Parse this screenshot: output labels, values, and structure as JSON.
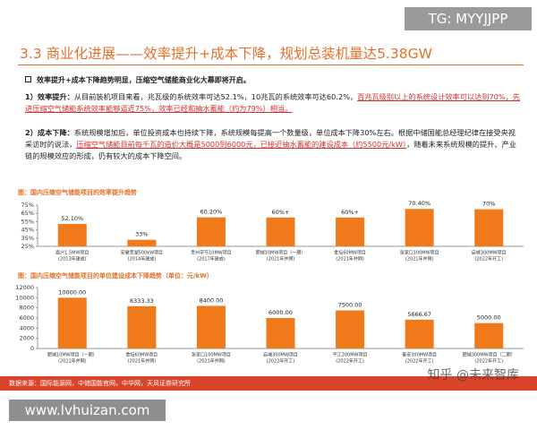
{
  "watermark_top": "TG: MYYJJPP",
  "header": {
    "title": "3.3 商业化进展——效率提升+成本下降，规划总装机量达5.38GW"
  },
  "summary": "效率提升+成本下降趋势明显，压缩空气储能商业化大幕即将开启。",
  "points": [
    {
      "label": "1）效率提升：",
      "segments": [
        {
          "text": "从目前装机项目来看，兆瓦级的系统效率可达52.1%，10兆瓦的系统效率可达60.2%，",
          "highlight": false
        },
        {
          "text": "百兆瓦级别以上的系统设计效率可以达到70%，先进压缩空气储能系统效率能够逼近75%，效率已经和抽水蓄能（约为79%）相当。",
          "highlight": true
        }
      ]
    },
    {
      "label": "2）成本下降：",
      "segments": [
        {
          "text": "系统规模增加后，单位投资成本也持续下降，系统规模每提高一个数量级，单位成本下降30%左右。根据中储国能总经理纪律在接受央视采访时的说法，",
          "highlight": false
        },
        {
          "text": "压缩空气储能目前每千瓦的造价大概是5000到6000元，已接近抽水蓄能的建设成本（约5500元/kW）",
          "highlight": true
        },
        {
          "text": "，随着未来系统规模的提升、产业链的规模效应的形成，仍有较大的成本下降空间。",
          "highlight": false
        }
      ]
    }
  ],
  "chart_data": [
    {
      "type": "bar",
      "title": "图：国内压缩空气储能项目的效率提升趋势",
      "categories": [
        "嘉兴1.5MW项目",
        "安徽芜湖500kW项目",
        "贵州毕节10MW项目",
        "肥城10MW项目（一期）",
        "金坛60MW项目",
        "张家口100MW项目",
        "启城300MW项目"
      ],
      "category_notes": [
        "(2013年建成)",
        "(2014年建成)",
        "(2017年建成)",
        "(2021年并网)",
        "(2021年并网)",
        "(2021年并网)",
        "(2022年开工)"
      ],
      "values": [
        52.1,
        33,
        60.2,
        60,
        60,
        70.4,
        70
      ],
      "value_labels": [
        "52.10%",
        "33%",
        "60.20%",
        "60%+",
        "60%+",
        "70.40%",
        "70%"
      ],
      "color": "#f07a1a",
      "ylim": [
        25,
        75
      ],
      "yticks": [
        {
          "value": 25,
          "label": "25%"
        },
        {
          "value": 35,
          "label": "35%"
        },
        {
          "value": 45,
          "label": "45%"
        },
        {
          "value": 55,
          "label": "55%"
        },
        {
          "value": 65,
          "label": "65%"
        },
        {
          "value": 75,
          "label": "75%"
        }
      ]
    },
    {
      "type": "bar",
      "title": "图：国内压缩空气储能项目的单位建设成本下降趋势（单位：元/kW）",
      "categories": [
        "肥城10MW项目（一期）",
        "金坛60MW项目",
        "张家口100MW项目",
        "启城300MW项目",
        "平江200MW项目",
        "泰安300MW项目",
        "肥城300MW项目（二期）"
      ],
      "category_notes": [
        "(2021年并网)",
        "(2021年并网)",
        "(2021年并网)",
        "(2022年开工)",
        "(2022年开工)",
        "(2022年开工)",
        "(2022年开工)"
      ],
      "values": [
        10000,
        8333.33,
        8400,
        6000,
        7500,
        5666.67,
        5000
      ],
      "value_labels": [
        "10000.00",
        "8333.33",
        "8400.00",
        "6000.00",
        "7500.00",
        "5666.67",
        "5000.00"
      ],
      "color": "#f07a1a",
      "ylim": [
        0,
        12000
      ],
      "yticks": [
        0,
        2000,
        4000,
        6000,
        8000,
        10000,
        12000
      ]
    }
  ],
  "footer": {
    "source": "数据来源：国际能源网，中储国能官网，中华网，天风证券研究所"
  },
  "watermark_zhihu": "知乎 @未来智库",
  "watermark_site": "www.lvhuizan.com"
}
